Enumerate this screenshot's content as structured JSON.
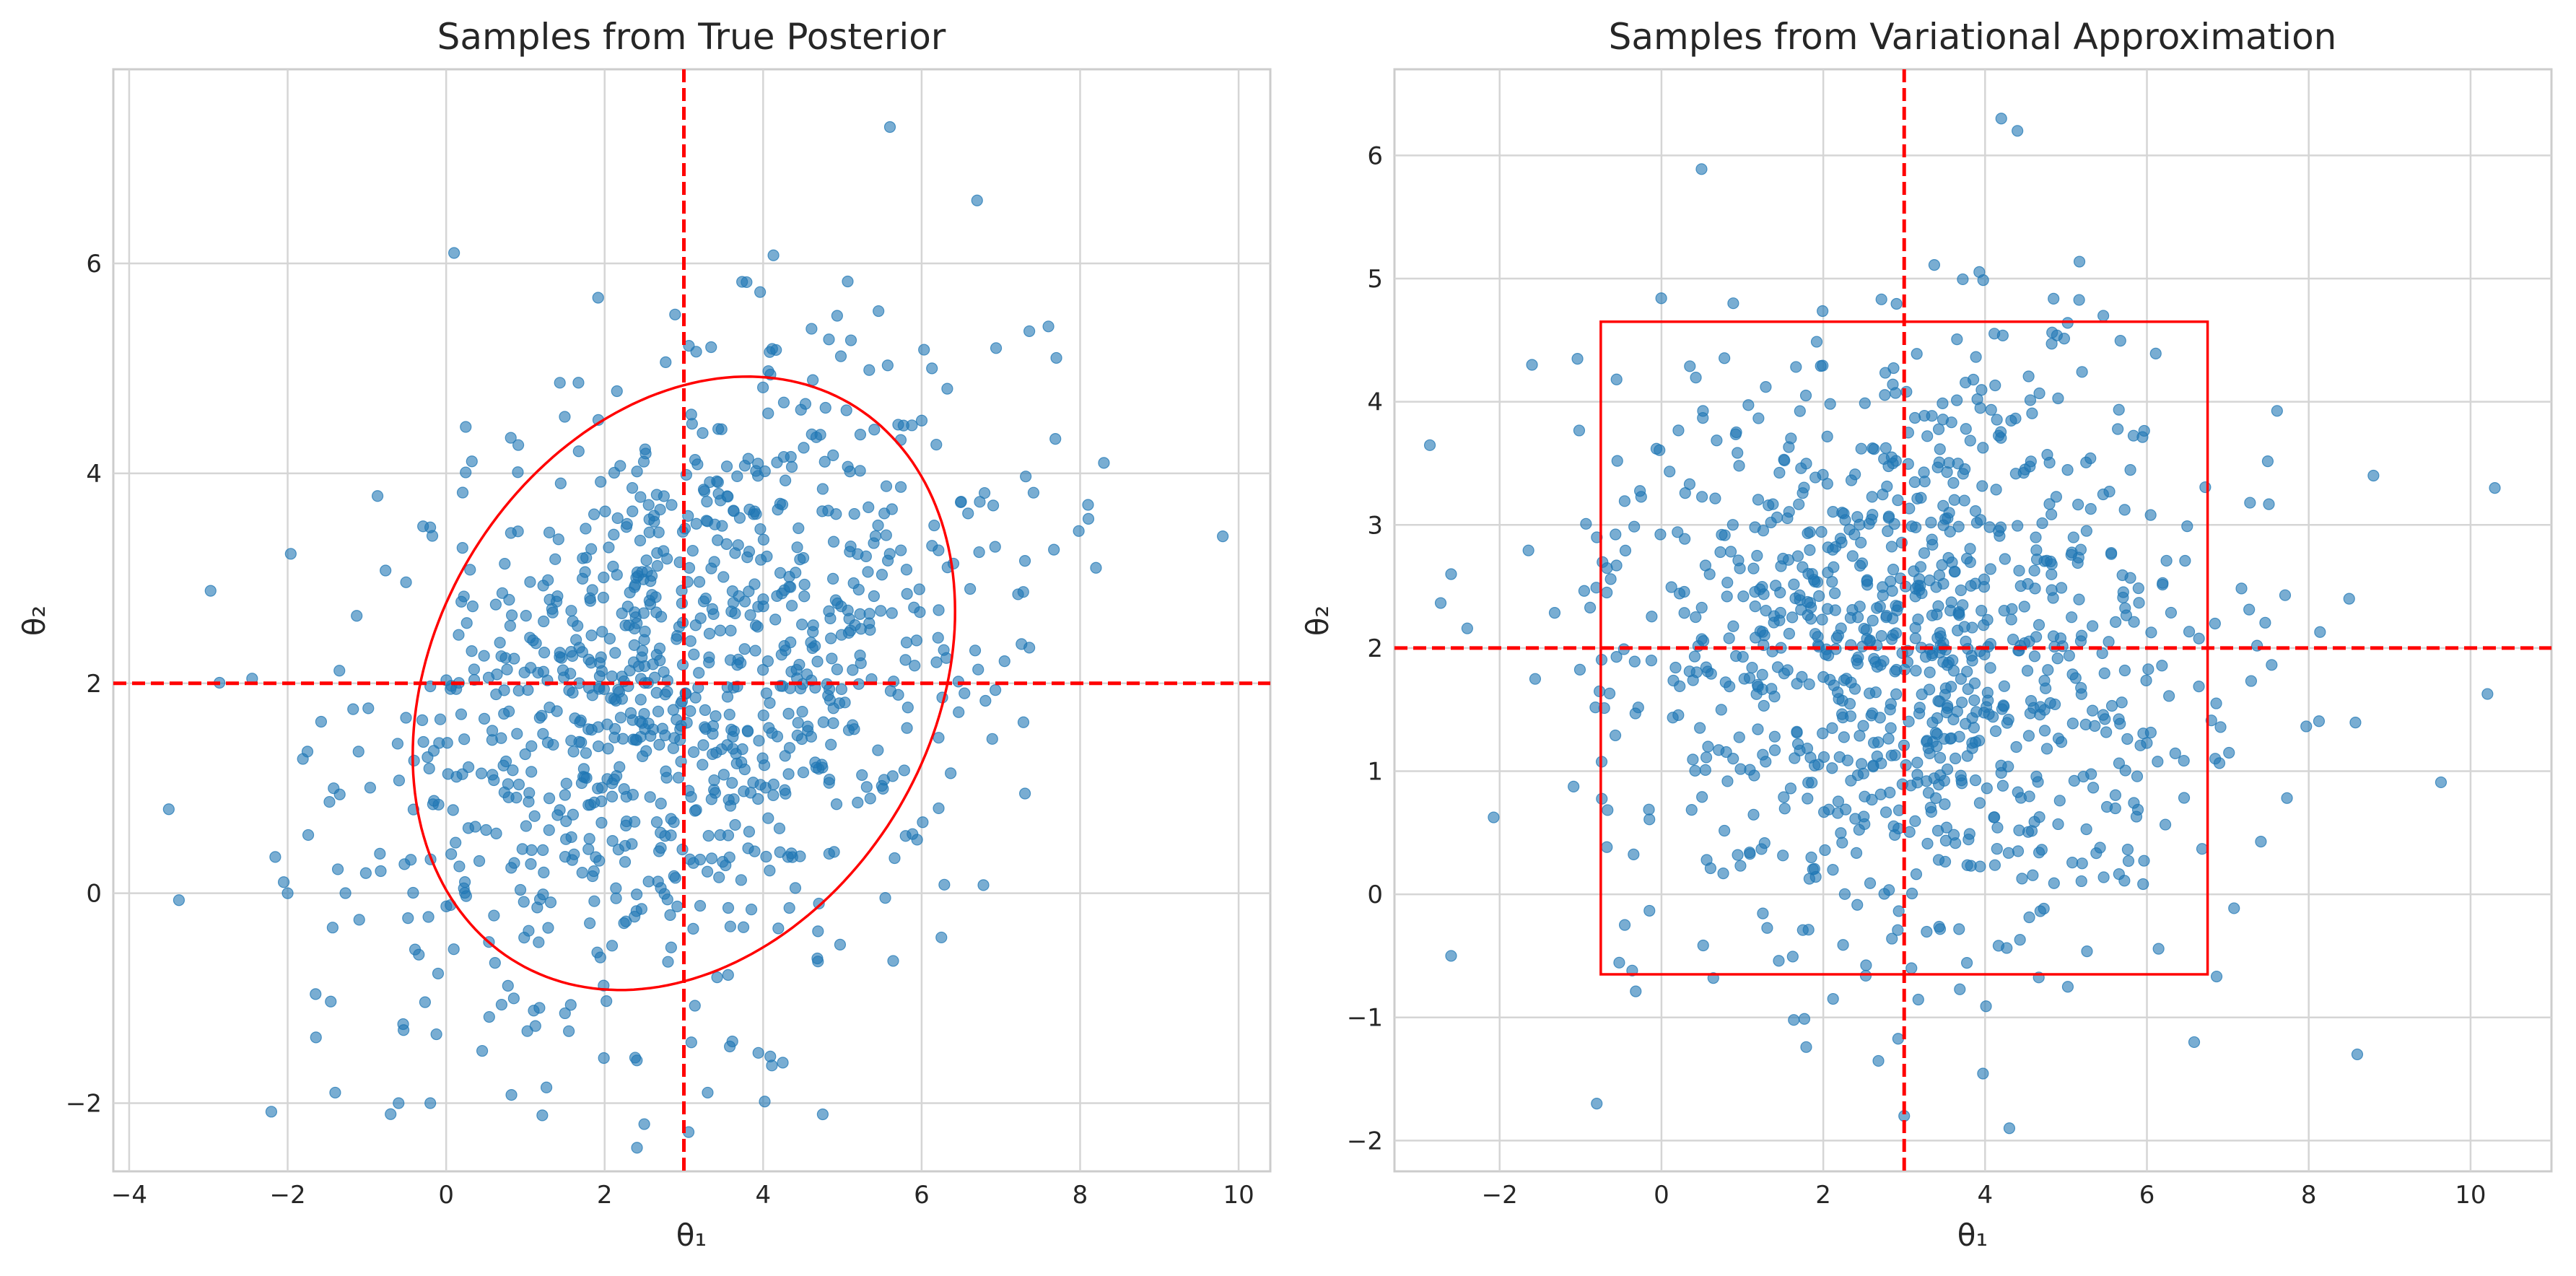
{
  "chart_data": [
    {
      "type": "scatter",
      "title": "Samples from True Posterior",
      "xlabel": "θ₁",
      "ylabel": "θ₂",
      "xlim": [
        -4.2,
        10.4
      ],
      "ylim": [
        -2.65,
        7.85
      ],
      "xticks": [
        -4,
        -2,
        0,
        2,
        4,
        6,
        8,
        10
      ],
      "xtick_labels": [
        "−4",
        "−2",
        "0",
        "2",
        "4",
        "6",
        "8",
        "10"
      ],
      "yticks": [
        -2,
        0,
        2,
        4,
        6
      ],
      "ytick_labels": [
        "−2",
        "0",
        "2",
        "4",
        "6"
      ],
      "grid": true,
      "point_color": "#1f77b4",
      "point_alpha": 0.6,
      "overlay_color": "#ff0000",
      "points": {
        "n": 1000,
        "distribution": "correlated bivariate normal",
        "mean": [
          3,
          2
        ],
        "std": [
          2.0,
          1.5
        ],
        "correlation": 0.3,
        "outliers": [
          [
            9.8,
            3.4
          ],
          [
            -3.5,
            0.8
          ],
          [
            5.6,
            7.3
          ],
          [
            6.7,
            6.6
          ],
          [
            0.1,
            6.1
          ],
          [
            -2.0,
            0.0
          ],
          [
            -1.4,
            -1.9
          ],
          [
            2.5,
            -2.2
          ],
          [
            3.3,
            -1.9
          ],
          [
            -0.6,
            -2.0
          ],
          [
            -0.2,
            -2.0
          ],
          [
            8.1,
            3.7
          ],
          [
            8.2,
            3.1
          ],
          [
            8.3,
            4.1
          ],
          [
            7.7,
            5.1
          ],
          [
            7.6,
            5.4
          ]
        ]
      },
      "vline_x": 3,
      "hline_y": 2,
      "ellipse": {
        "cx": 3,
        "cy": 2,
        "rx": 3.6,
        "ry": 2.7,
        "angle_deg": 28
      }
    },
    {
      "type": "scatter",
      "title": "Samples from Variational Approximation",
      "xlabel": "θ₁",
      "ylabel": "θ₂",
      "xlim": [
        -3.3,
        11.0
      ],
      "ylim": [
        -2.25,
        6.7
      ],
      "xticks": [
        -2,
        0,
        2,
        4,
        6,
        8,
        10
      ],
      "xtick_labels": [
        "−2",
        "0",
        "2",
        "4",
        "6",
        "8",
        "10"
      ],
      "yticks": [
        -2,
        -1,
        0,
        1,
        2,
        3,
        4,
        5,
        6
      ],
      "ytick_labels": [
        "−2",
        "−1",
        "0",
        "1",
        "2",
        "3",
        "4",
        "5",
        "6"
      ],
      "grid": true,
      "point_color": "#1f77b4",
      "point_alpha": 0.6,
      "overlay_color": "#ff0000",
      "points": {
        "n": 1000,
        "distribution": "independent bivariate normal",
        "mean": [
          3,
          2
        ],
        "std": [
          1.9,
          1.3
        ],
        "correlation": 0,
        "outliers": [
          [
            10.3,
            3.3
          ],
          [
            -2.6,
            -0.5
          ],
          [
            -2.6,
            2.6
          ],
          [
            8.6,
            -1.3
          ],
          [
            8.8,
            3.4
          ],
          [
            8.5,
            2.4
          ],
          [
            4.2,
            6.3
          ],
          [
            4.4,
            6.2
          ],
          [
            -0.8,
            -1.7
          ],
          [
            4.3,
            -1.9
          ],
          [
            3.0,
            -1.8
          ],
          [
            -1.6,
            4.3
          ]
        ]
      },
      "vline_x": 3,
      "hline_y": 2,
      "rectangle": {
        "x0": -0.75,
        "x1": 6.75,
        "y0": -0.65,
        "y1": 4.65
      }
    }
  ]
}
